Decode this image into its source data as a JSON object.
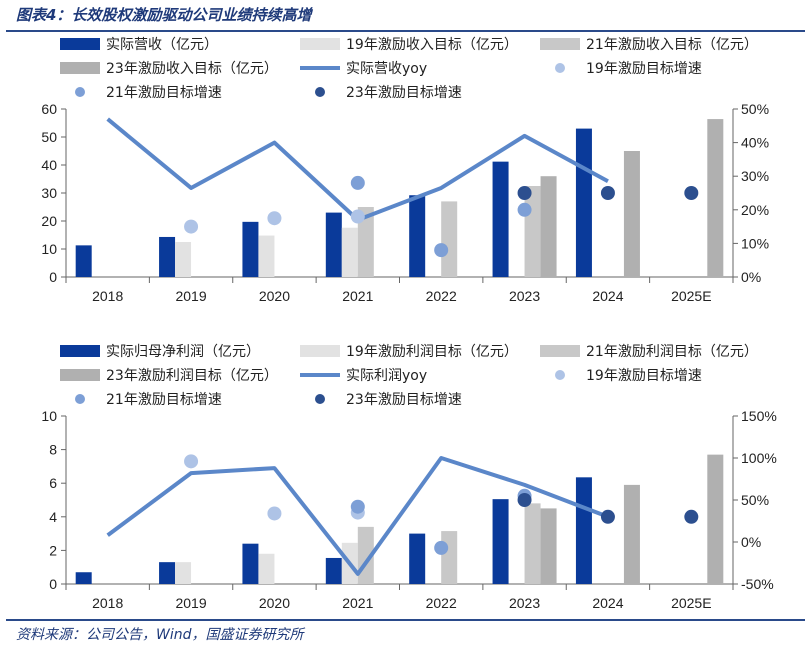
{
  "figure": {
    "title": "图表4：长效股权激励驱动公司业绩持续高增",
    "source": "资料来源：公司公告，Wind，国盛证券研究所"
  },
  "colors": {
    "actual": "#0a3a9a",
    "target19": "#e2e2e2",
    "target21": "#c8c8c8",
    "target23": "#b0b0b0",
    "line": "#5b87c9",
    "dot19": "#aec3e6",
    "dot21": "#7d9fd6",
    "dot23": "#2c4f8f"
  },
  "chart_data": [
    {
      "type": "bar",
      "categories": [
        "2018",
        "2019",
        "2020",
        "2021",
        "2022",
        "2023",
        "2024",
        "2025E"
      ],
      "ylim": [
        0,
        60
      ],
      "yticks": [
        0,
        10,
        20,
        30,
        40,
        50,
        60
      ],
      "y2lim": [
        0,
        0.5
      ],
      "y2ticks": [
        "0%",
        "10%",
        "20%",
        "30%",
        "40%",
        "50%"
      ],
      "y2tick_values": [
        0,
        0.1,
        0.2,
        0.3,
        0.4,
        0.5
      ],
      "series": [
        {
          "name": "实际营收（亿元）",
          "kind": "bar",
          "color_key": "actual",
          "values": [
            11.3,
            14.3,
            19.7,
            23.0,
            29.2,
            41.2,
            53.0,
            null
          ]
        },
        {
          "name": "19年激励收入目标（亿元）",
          "kind": "bar",
          "color_key": "target19",
          "values": [
            null,
            12.5,
            14.8,
            17.6,
            null,
            null,
            null,
            null
          ]
        },
        {
          "name": "21年激励收入目标（亿元）",
          "kind": "bar",
          "color_key": "target21",
          "values": [
            null,
            null,
            null,
            25.0,
            27.0,
            32.5,
            null,
            null
          ]
        },
        {
          "name": "23年激励收入目标（亿元）",
          "kind": "bar",
          "color_key": "target23",
          "values": [
            null,
            null,
            null,
            null,
            null,
            36.0,
            45.0,
            56.4
          ]
        },
        {
          "name": "实际营收yoy",
          "kind": "line",
          "axis": "right",
          "color_key": "line",
          "values": [
            0.47,
            0.265,
            0.4,
            0.17,
            0.265,
            0.42,
            0.285,
            null
          ]
        },
        {
          "name": "19年激励目标增速",
          "kind": "dot",
          "axis": "right",
          "color_key": "dot19",
          "values": [
            null,
            0.15,
            0.175,
            0.18,
            null,
            null,
            null,
            null
          ]
        },
        {
          "name": "21年激励目标增速",
          "kind": "dot",
          "axis": "right",
          "color_key": "dot21",
          "values": [
            null,
            null,
            null,
            0.28,
            0.08,
            0.2,
            null,
            null
          ]
        },
        {
          "name": "23年激励目标增速",
          "kind": "dot",
          "axis": "right",
          "color_key": "dot23",
          "values": [
            null,
            null,
            null,
            null,
            null,
            0.25,
            0.25,
            0.25
          ]
        }
      ]
    },
    {
      "type": "bar",
      "categories": [
        "2018",
        "2019",
        "2020",
        "2021",
        "2022",
        "2023",
        "2024",
        "2025E"
      ],
      "ylim": [
        0,
        10
      ],
      "yticks": [
        0,
        2,
        4,
        6,
        8,
        10
      ],
      "y2lim": [
        -0.5,
        1.5
      ],
      "y2ticks": [
        "-50%",
        "0%",
        "50%",
        "100%",
        "150%"
      ],
      "y2tick_values": [
        -0.5,
        0,
        0.5,
        1.0,
        1.5
      ],
      "series": [
        {
          "name": "实际归母净利润（亿元）",
          "kind": "bar",
          "color_key": "actual",
          "values": [
            0.7,
            1.3,
            2.4,
            1.55,
            3.0,
            5.05,
            6.35,
            null
          ]
        },
        {
          "name": "19年激励利润目标（亿元）",
          "kind": "bar",
          "color_key": "target19",
          "values": [
            null,
            1.3,
            1.8,
            2.45,
            null,
            null,
            null,
            null
          ]
        },
        {
          "name": "21年激励利润目标（亿元）",
          "kind": "bar",
          "color_key": "target21",
          "values": [
            null,
            null,
            null,
            3.4,
            3.15,
            4.8,
            null,
            null
          ]
        },
        {
          "name": "23年激励利润目标（亿元）",
          "kind": "bar",
          "color_key": "target23",
          "values": [
            null,
            null,
            null,
            null,
            null,
            4.5,
            5.9,
            7.7
          ]
        },
        {
          "name": "实际利润yoy",
          "kind": "line",
          "axis": "right",
          "color_key": "line",
          "values": [
            0.08,
            0.82,
            0.88,
            -0.38,
            1.0,
            0.68,
            0.3,
            null
          ]
        },
        {
          "name": "19年激励目标增速",
          "kind": "dot",
          "axis": "right",
          "color_key": "dot19",
          "values": [
            null,
            0.96,
            0.34,
            0.35,
            null,
            null,
            null,
            null
          ]
        },
        {
          "name": "21年激励目标增速",
          "kind": "dot",
          "axis": "right",
          "color_key": "dot21",
          "values": [
            null,
            null,
            null,
            0.42,
            -0.07,
            0.55,
            null,
            null
          ]
        },
        {
          "name": "23年激励目标增速",
          "kind": "dot",
          "axis": "right",
          "color_key": "dot23",
          "values": [
            null,
            null,
            null,
            null,
            null,
            0.5,
            0.3,
            0.3
          ]
        }
      ]
    }
  ]
}
